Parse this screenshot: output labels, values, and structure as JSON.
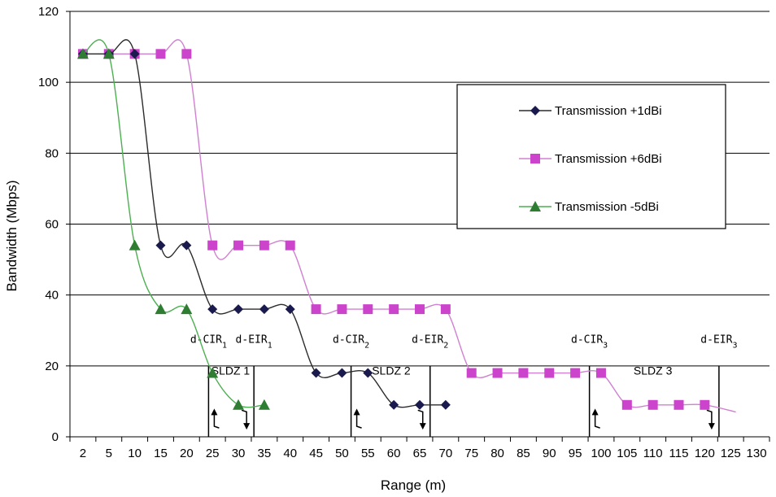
{
  "chart_data": {
    "type": "line",
    "title": "",
    "xlabel": "Range  (m)",
    "ylabel": "Bandwidth  (Mbps)",
    "ylim": [
      0,
      120
    ],
    "yticks": [
      0,
      20,
      40,
      60,
      80,
      100,
      120
    ],
    "grid": "horizontal",
    "legend_position": "top-right",
    "categories": [
      "2",
      "5",
      "10",
      "15",
      "20",
      "25",
      "30",
      "35",
      "40",
      "45",
      "50",
      "55",
      "60",
      "65",
      "70",
      "75",
      "80",
      "85",
      "90",
      "95",
      "100",
      "105",
      "110",
      "115",
      "120",
      "125",
      "130"
    ],
    "series": [
      {
        "name": "Transmission +1dBi",
        "color": "#1a1a4e",
        "line_color": "#2b2b2b",
        "marker": "diamond",
        "values": [
          108,
          108,
          108,
          54,
          54,
          36,
          36,
          36,
          36,
          18,
          18,
          18,
          9,
          9,
          9,
          null,
          null,
          null,
          null,
          null,
          null,
          null,
          null,
          null,
          null,
          null,
          null
        ]
      },
      {
        "name": "Transmission +6dBi",
        "color": "#cc44cc",
        "line_color": "#d080d0",
        "marker": "square",
        "values": [
          108,
          108,
          108,
          108,
          108,
          54,
          54,
          54,
          54,
          36,
          36,
          36,
          36,
          36,
          36,
          18,
          18,
          18,
          18,
          18,
          18,
          9,
          9,
          9,
          9,
          null,
          null
        ],
        "tail": {
          "x": 25.7,
          "y": 7
        }
      },
      {
        "name": "Transmission -5dBi",
        "color": "#2e7d32",
        "line_color": "#4caf50",
        "marker": "triangle",
        "values": [
          108,
          108,
          54,
          36,
          36,
          18,
          9,
          9,
          null,
          null,
          null,
          null,
          null,
          null,
          null,
          null,
          null,
          null,
          null,
          null,
          null,
          null,
          null,
          null,
          null,
          null,
          null
        ]
      }
    ],
    "thresholds": [
      {
        "label": "d-CIR",
        "sub": "1",
        "pos": 5.35,
        "dir": "up"
      },
      {
        "label": "d-EIR",
        "sub": "1",
        "pos": 7.1,
        "dir": "down"
      },
      {
        "label": "d-CIR",
        "sub": "2",
        "pos": 10.85,
        "dir": "up"
      },
      {
        "label": "d-EIR",
        "sub": "2",
        "pos": 13.9,
        "dir": "down"
      },
      {
        "label": "d-CIR",
        "sub": "3",
        "pos": 20.05,
        "dir": "up"
      },
      {
        "label": "d-EIR",
        "sub": "3",
        "pos": 25.05,
        "dir": "down"
      }
    ],
    "zones": [
      {
        "label": "SLDZ 1",
        "pos": 6.2
      },
      {
        "label": "SLDZ 2",
        "pos": 12.4
      },
      {
        "label": "SLDZ 3",
        "pos": 22.5
      }
    ]
  }
}
